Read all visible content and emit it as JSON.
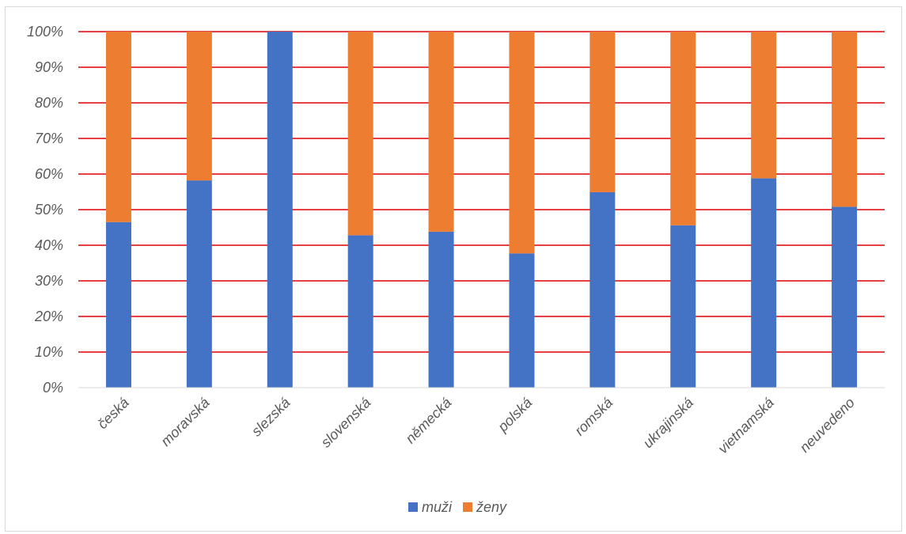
{
  "chart_data": {
    "type": "bar",
    "stacked": true,
    "percent": true,
    "categories": [
      "česká",
      "moravská",
      "slezská",
      "slovenská",
      "německá",
      "polská",
      "romská",
      "ukrajinská",
      "vietnamská",
      "neuvedeno"
    ],
    "series": [
      {
        "name": "muži",
        "color": "#4472C4",
        "values": [
          46.5,
          58.2,
          100,
          42.8,
          43.8,
          37.7,
          54.9,
          45.6,
          58.8,
          50.8
        ]
      },
      {
        "name": "ženy",
        "color": "#ED7D31",
        "values": [
          53.5,
          41.8,
          0,
          57.2,
          56.2,
          62.3,
          45.1,
          54.4,
          41.2,
          49.2
        ]
      }
    ],
    "yticks": [
      "0%",
      "10%",
      "20%",
      "30%",
      "40%",
      "50%",
      "60%",
      "70%",
      "80%",
      "90%",
      "100%"
    ],
    "ylim": [
      0,
      100
    ],
    "gridline_color": "#E00000",
    "grid": true,
    "legend_position": "bottom"
  }
}
